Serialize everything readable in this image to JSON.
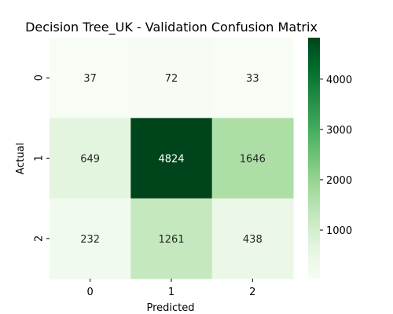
{
  "chart_data": {
    "type": "heatmap",
    "title": "Decision Tree_UK - Validation Confusion Matrix",
    "xlabel": "Predicted",
    "ylabel": "Actual",
    "x_categories": [
      "0",
      "1",
      "2"
    ],
    "y_categories": [
      "0",
      "1",
      "2"
    ],
    "values": [
      [
        37,
        72,
        33
      ],
      [
        649,
        4824,
        1646
      ],
      [
        232,
        1261,
        438
      ]
    ],
    "colormap": "Greens",
    "value_range": [
      33,
      4824
    ],
    "colorbar_ticks": [
      1000,
      2000,
      3000,
      4000
    ],
    "colorbar_tick_labels": [
      "1000",
      "2000",
      "3000",
      "4000"
    ],
    "grid": false,
    "legend": "colorbar-right"
  }
}
